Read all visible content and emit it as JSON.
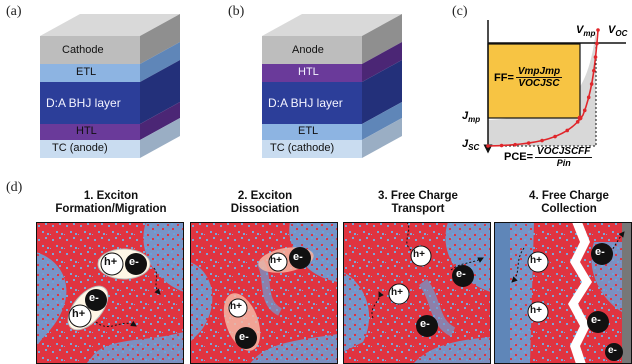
{
  "panels": {
    "a": "(a)",
    "b": "(b)",
    "c": "(c)",
    "d": "(d)"
  },
  "stack_a": {
    "layers": [
      "Cathode",
      "ETL",
      "D:A BHJ layer",
      "HTL",
      "TC (anode)"
    ]
  },
  "stack_b": {
    "layers": [
      "Anode",
      "HTL",
      "D:A BHJ layer",
      "ETL",
      "TC (cathode)"
    ]
  },
  "jv_curve": {
    "v_mp": "V",
    "v_mp_sub": "mp",
    "v_oc": "V",
    "v_oc_sub": "OC",
    "j_mp": "J",
    "j_mp_sub": "mp",
    "j_sc": "J",
    "j_sc_sub": "SC",
    "ff_lhs": "FF=",
    "ff_num": "VmpJmp",
    "ff_den": "VOCJSC",
    "pce_lhs": "PCE=",
    "pce_num": "VOCJSCFF",
    "pce_den": "Pin",
    "colors": {
      "ff_box": "#f7c443",
      "curve": "#e0262b",
      "shade": "#d8d8d8"
    }
  },
  "processes": [
    {
      "title_line1": "1. Exciton",
      "title_line2": "Formation/Migration"
    },
    {
      "title_line1": "2. Exciton",
      "title_line2": "Dissociation"
    },
    {
      "title_line1": "3. Free Charge",
      "title_line2": "Transport"
    },
    {
      "title_line1": "4. Free Charge",
      "title_line2": "Collection"
    }
  ],
  "carriers": {
    "hole": "h+",
    "electron": "e-"
  },
  "colors": {
    "donor": "#e03440",
    "acceptor": "#6b9fd6",
    "hole_fill": "#ffffff",
    "electron_fill": "#111111"
  }
}
